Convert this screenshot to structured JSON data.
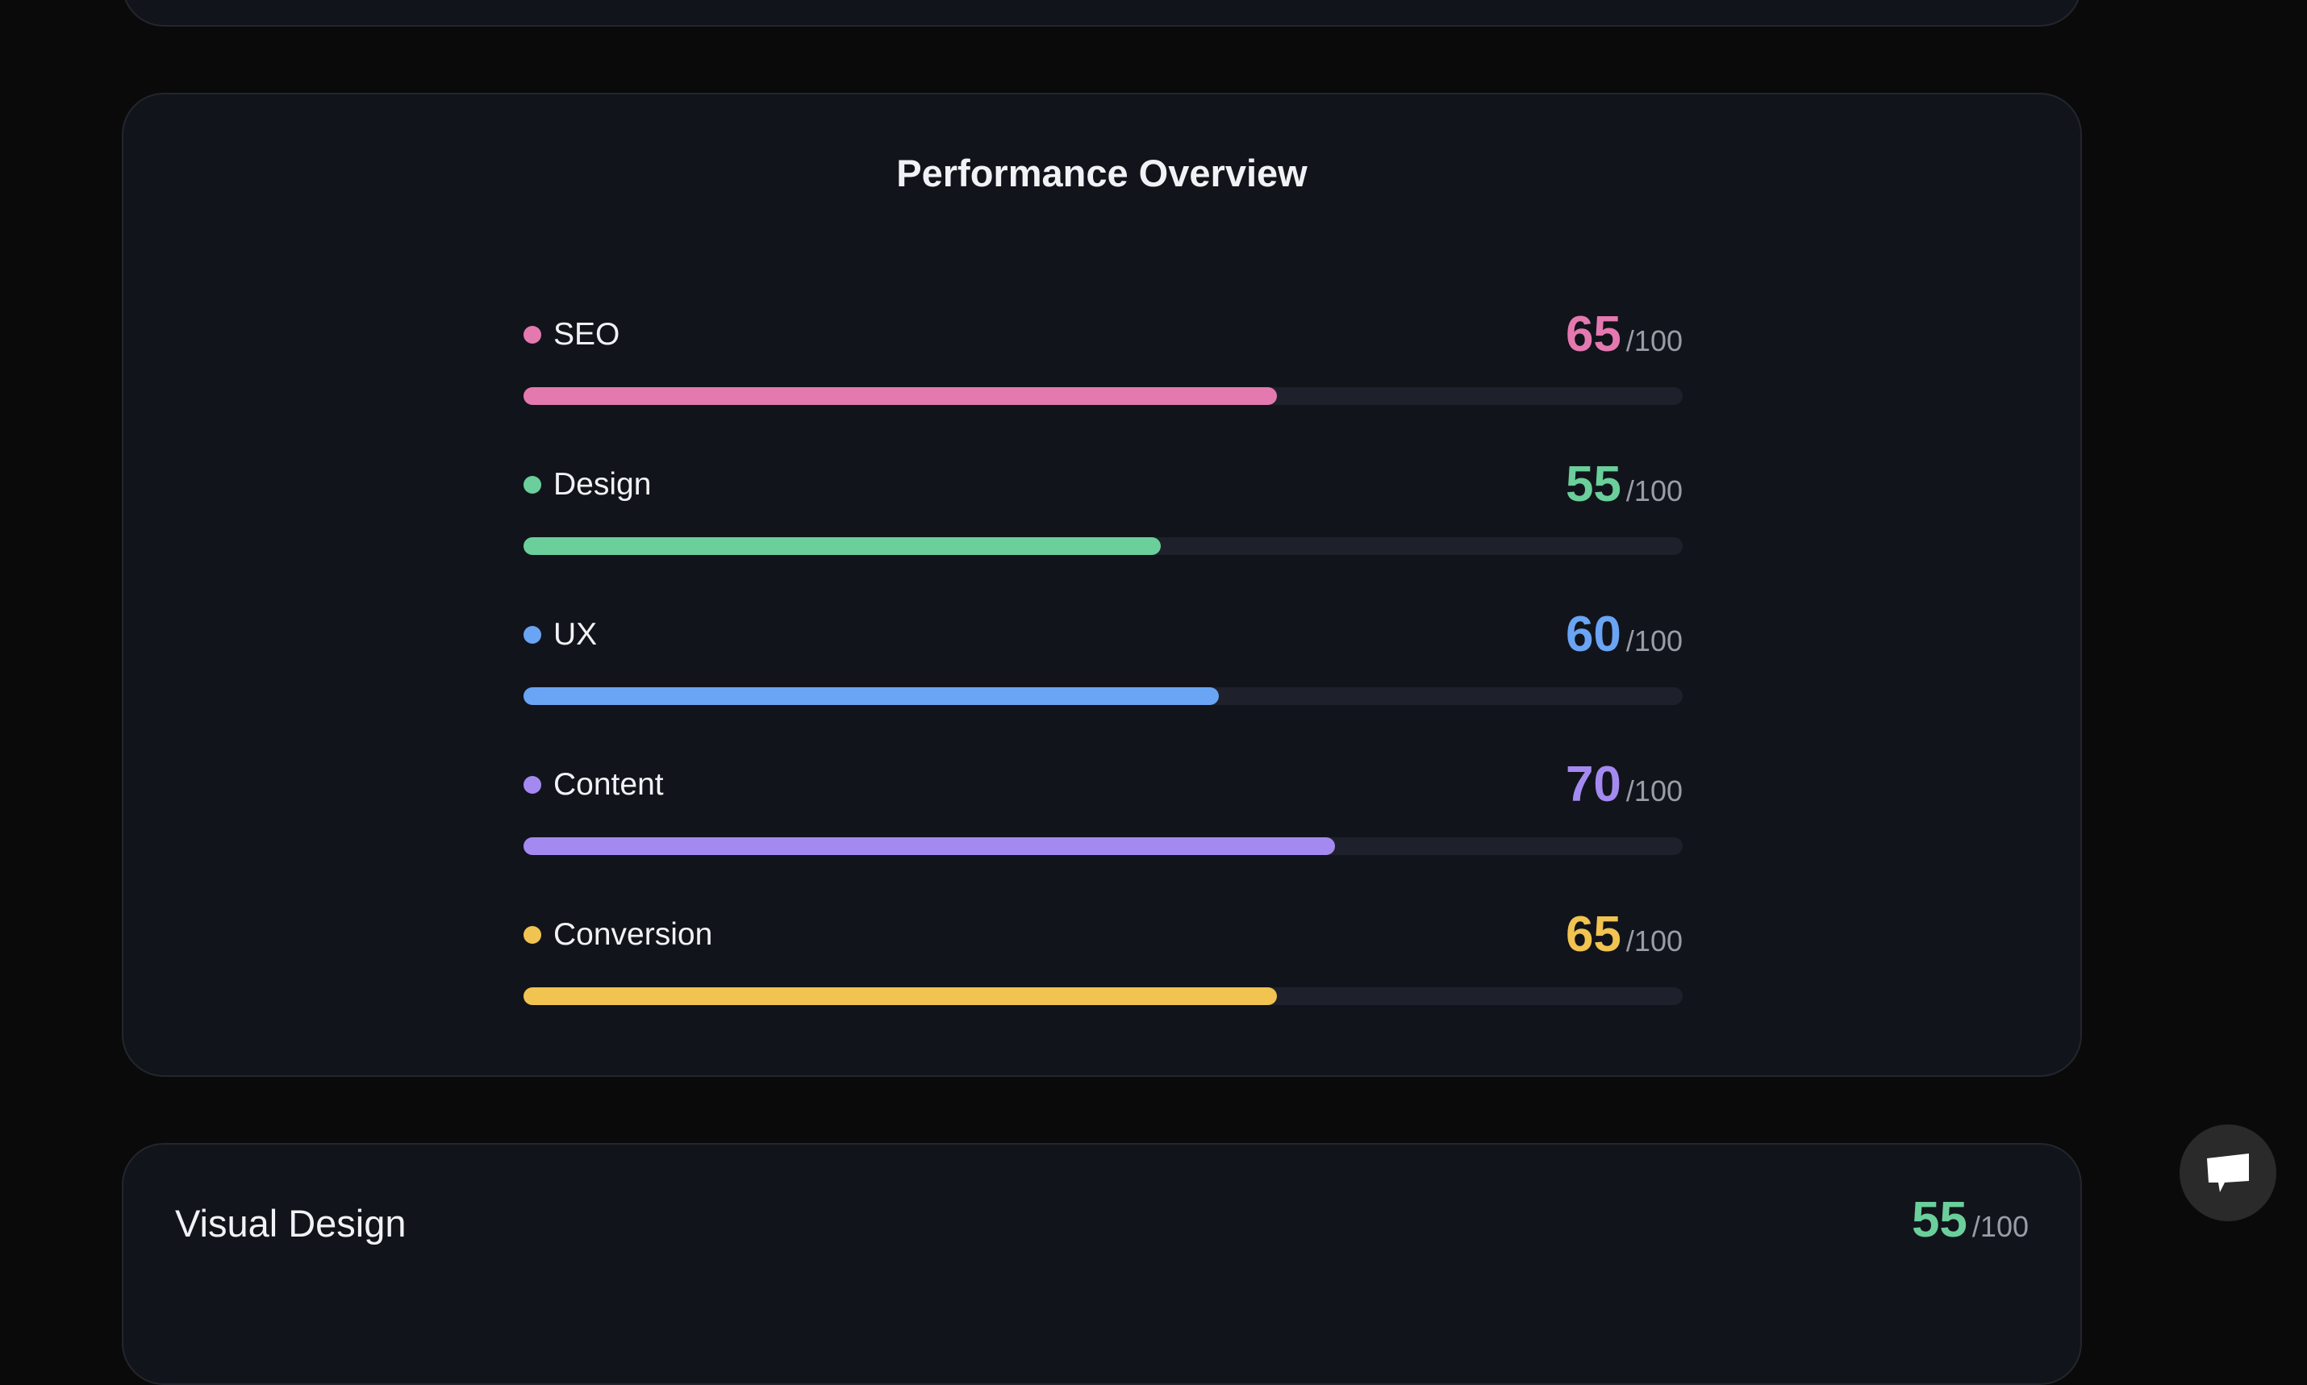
{
  "performance": {
    "title": "Performance Overview",
    "max_label": "/100",
    "metrics": [
      {
        "label": "SEO",
        "score": "65",
        "value": 65,
        "color": "#e479b0"
      },
      {
        "label": "Design",
        "score": "55",
        "value": 55,
        "color": "#6acf9b"
      },
      {
        "label": "UX",
        "score": "60",
        "value": 60,
        "color": "#6aa4f4"
      },
      {
        "label": "Content",
        "score": "70",
        "value": 70,
        "color": "#a48af0"
      },
      {
        "label": "Conversion",
        "score": "65",
        "value": 65,
        "color": "#f1c350"
      }
    ]
  },
  "visual_design": {
    "title": "Visual Design",
    "score": "55",
    "max_label": "/100"
  },
  "chat_button": {
    "icon": "chat-bubble-icon"
  }
}
